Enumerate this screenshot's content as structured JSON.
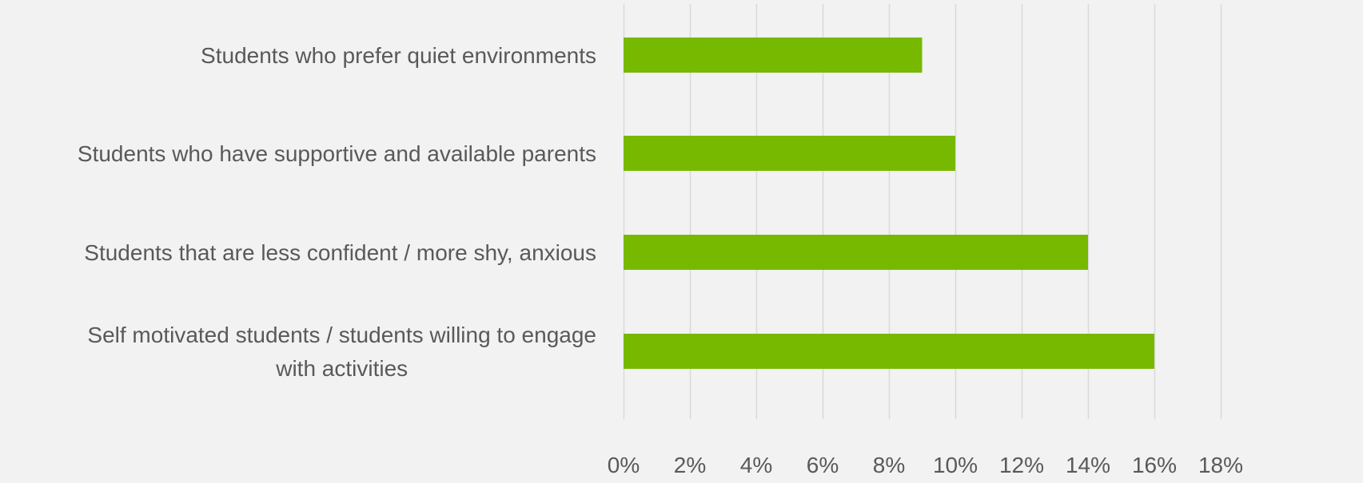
{
  "chart_data": {
    "type": "bar",
    "orientation": "horizontal",
    "categories": [
      [
        "Students who prefer quiet environments"
      ],
      [
        "Students who have supportive and available parents"
      ],
      [
        "Students that are less confident / more shy, anxious"
      ],
      [
        "Self motivated students / students willing to engage",
        "with activities"
      ]
    ],
    "values": [
      9,
      10,
      14,
      16
    ],
    "x_ticks": [
      "0%",
      "2%",
      "4%",
      "6%",
      "8%",
      "10%",
      "12%",
      "14%",
      "16%",
      "18%"
    ],
    "xlim": [
      0,
      18
    ],
    "grid": true,
    "legend": "none",
    "bar_color": "#76b900",
    "grid_color": "#d9d9d9",
    "text_color": "#595959",
    "background": "#f2f2f2"
  }
}
